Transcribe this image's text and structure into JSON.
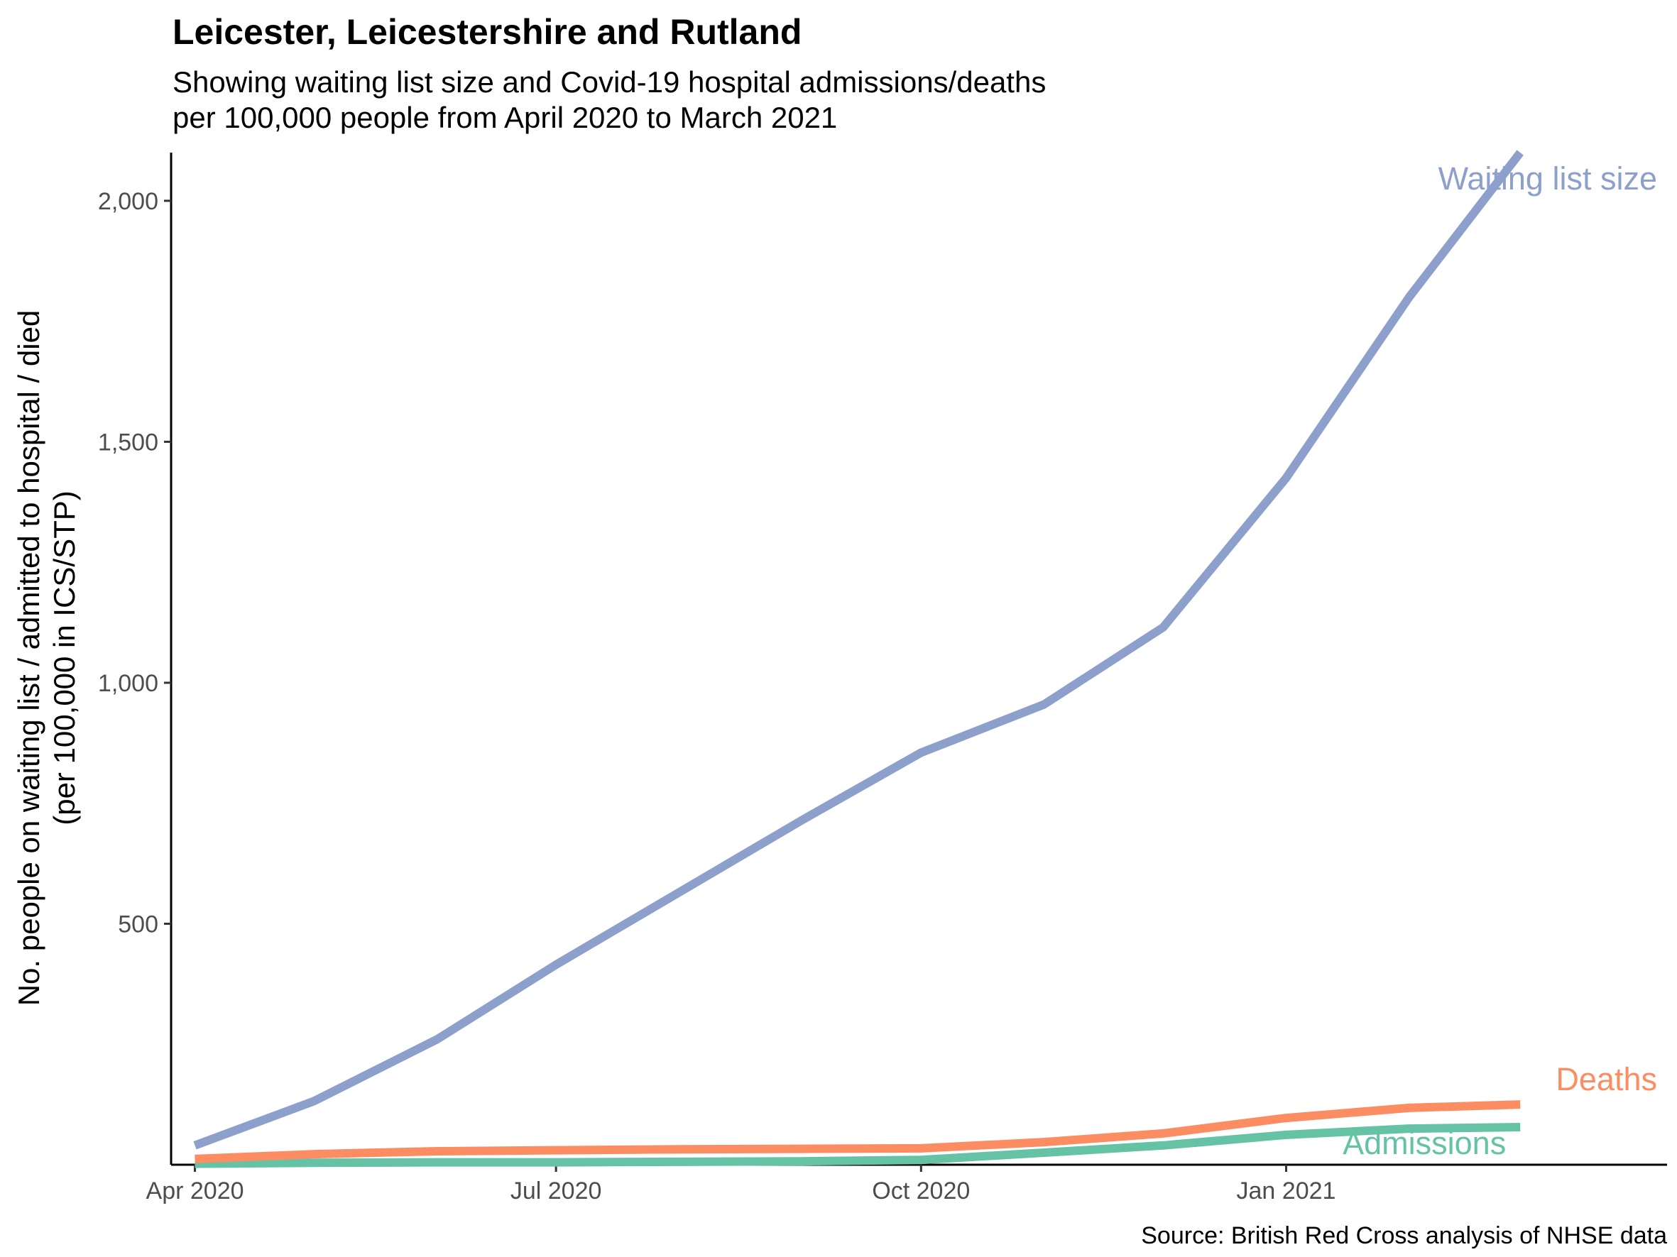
{
  "chart_data": {
    "type": "line",
    "title": "Leicester, Leicestershire and Rutland",
    "subtitle_lines": [
      "Showing waiting list size and Covid-19 hospital admissions/deaths",
      "per 100,000 people from April 2020 to March 2021"
    ],
    "ylabel_lines": [
      "No. people on waiting list / admitted to hospital / died",
      "(per 100,000 in ICS/STP)"
    ],
    "xlabel": "",
    "caption": "Source: British Red Cross analysis of NHSE data",
    "x": [
      "2020-04-01",
      "2020-05-01",
      "2020-06-01",
      "2020-07-01",
      "2020-08-01",
      "2020-09-01",
      "2020-10-01",
      "2020-11-01",
      "2020-12-01",
      "2021-01-01",
      "2021-02-01",
      "2021-03-01"
    ],
    "xlim": [
      "2020-03-26",
      "2021-04-07"
    ],
    "ylim": [
      0,
      2100
    ],
    "yticks": [
      500,
      1000,
      1500,
      2000
    ],
    "ytick_labels": [
      "500",
      "1,000",
      "1,500",
      "2,000"
    ],
    "xticks": [
      "2020-04-01",
      "2020-07-01",
      "2020-10-01",
      "2021-01-01"
    ],
    "xtick_labels": [
      "Apr 2020",
      "Jul 2020",
      "Oct 2020",
      "Jan 2021"
    ],
    "grid": false,
    "legend": "direct labels at line ends",
    "series": [
      {
        "name": "Waiting list size",
        "color": "#8DA0CB",
        "values": [
          40,
          132,
          260,
          415,
          565,
          715,
          855,
          955,
          1115,
          1425,
          1800,
          2100
        ]
      },
      {
        "name": "Deaths",
        "color": "#FC8D62",
        "values": [
          12,
          22,
          28,
          30,
          32,
          33,
          34,
          47,
          65,
          97,
          118,
          125
        ]
      },
      {
        "name": "Admissions",
        "color": "#66C2A5",
        "values": [
          2,
          4,
          5,
          5,
          6,
          7,
          10,
          25,
          40,
          62,
          75,
          78
        ]
      }
    ]
  }
}
